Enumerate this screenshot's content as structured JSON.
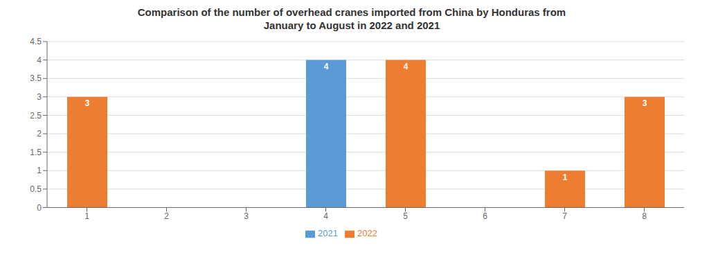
{
  "chart_data": {
    "type": "bar",
    "title": "Comparison of the number of overhead cranes imported from China by Honduras from\nJanuary to August in 2022 and 2021",
    "categories": [
      "1",
      "2",
      "3",
      "4",
      "5",
      "6",
      "7",
      "8"
    ],
    "series": [
      {
        "name": "2021",
        "color": "#5B9BD5",
        "values": [
          0,
          0,
          0,
          4,
          0,
          0,
          0,
          0
        ]
      },
      {
        "name": "2022",
        "color": "#ED7D31",
        "values": [
          3,
          0,
          0,
          0,
          4,
          0,
          1,
          3
        ]
      }
    ],
    "ylim": [
      0,
      4.5
    ],
    "yticks": [
      0,
      0.5,
      1,
      1.5,
      2,
      2.5,
      3,
      3.5,
      4,
      4.5
    ],
    "grid": true,
    "legend": "bottom",
    "data_labels": true
  }
}
